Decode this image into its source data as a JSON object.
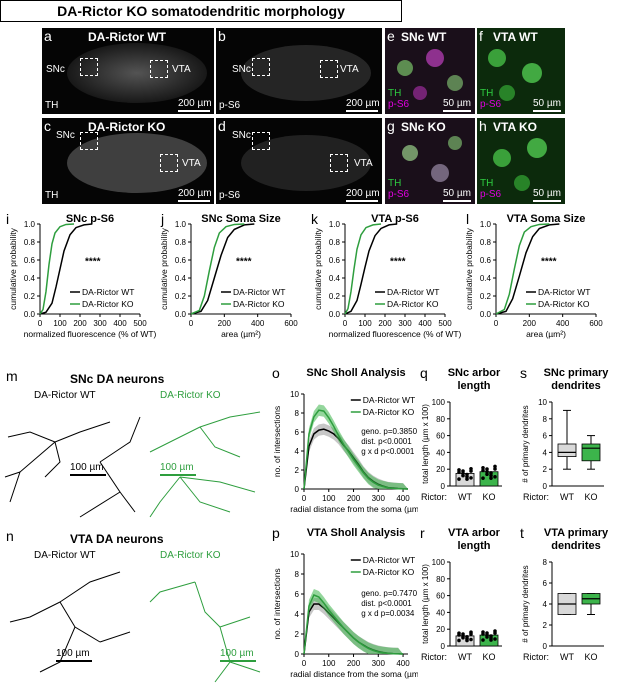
{
  "title": "DA-Rictor KO somatodendritic morphology",
  "colors": {
    "wt": "#000000",
    "ko": "#2e9e3e",
    "ko_fill": "#3cb44b",
    "magenta": "#e000e0"
  },
  "panels": {
    "a": {
      "letter": "a",
      "title": "DA-Rictor WT",
      "snc": "SNc",
      "vta": "VTA",
      "stain": "TH",
      "scale": "200 µm"
    },
    "b": {
      "letter": "b",
      "snc": "SNc",
      "vta": "VTA",
      "stain": "p-S6",
      "scale": "200 µm"
    },
    "c": {
      "letter": "c",
      "title": "DA-Rictor KO",
      "snc": "SNc",
      "vta": "VTA",
      "stain": "TH",
      "scale": "200 µm"
    },
    "d": {
      "letter": "d",
      "snc": "SNc",
      "vta": "VTA",
      "stain": "p-S6",
      "scale": "200 µm"
    },
    "e": {
      "letter": "e",
      "title": "SNc WT",
      "th": "TH",
      "ps6": "p-S6",
      "scale": "50 µm"
    },
    "f": {
      "letter": "f",
      "title": "VTA WT",
      "th": "TH",
      "ps6": "p-S6",
      "scale": "50 µm"
    },
    "g": {
      "letter": "g",
      "title": "SNc KO",
      "th": "TH",
      "ps6": "p-S6",
      "scale": "50 µm"
    },
    "h": {
      "letter": "h",
      "title": "VTA KO",
      "th": "TH",
      "ps6": "p-S6",
      "scale": "50 µm"
    },
    "m": {
      "letter": "m",
      "title": "SNc DA neurons",
      "wt": "DA-Rictor WT",
      "ko": "DA-Rictor KO",
      "scale_wt": "100 µm",
      "scale_ko": "100 µm"
    },
    "n": {
      "letter": "n",
      "title": "VTA DA neurons",
      "wt": "DA-Rictor WT",
      "ko": "DA-Rictor KO",
      "scale_wt": "100 µm",
      "scale_ko": "100 µm"
    }
  },
  "chart_data": [
    {
      "id": "i",
      "type": "line",
      "title": "SNc p-S6",
      "xlabel": "normalized fluorescence (% of WT)",
      "ylabel": "cumulative probability",
      "xlim": [
        0,
        500
      ],
      "ylim": [
        0,
        1.0
      ],
      "xticks": [
        0,
        100,
        200,
        300,
        400,
        500
      ],
      "yticks": [
        0,
        0.2,
        0.4,
        0.6,
        0.8,
        1.0
      ],
      "ytick_labels": [
        "0.0",
        "0.2",
        "0.4",
        "0.6",
        "0.8",
        "1.0"
      ],
      "sig": "****",
      "legend_position": "bottom-right",
      "series": [
        {
          "name": "DA-Rictor WT",
          "color": "#000000",
          "x": [
            0,
            30,
            60,
            80,
            100,
            120,
            150,
            180,
            220,
            260
          ],
          "y": [
            0,
            0.02,
            0.12,
            0.3,
            0.5,
            0.7,
            0.88,
            0.96,
            0.99,
            1.0
          ]
        },
        {
          "name": "DA-Rictor KO",
          "color": "#2e9e3e",
          "x": [
            0,
            15,
            30,
            45,
            60,
            75,
            100,
            130,
            170
          ],
          "y": [
            0,
            0.05,
            0.25,
            0.55,
            0.78,
            0.9,
            0.97,
            0.995,
            1.0
          ]
        }
      ]
    },
    {
      "id": "j",
      "type": "line",
      "title": "SNc Soma Size",
      "xlabel": "area (µm²)",
      "ylabel": "cumulative probability",
      "xlim": [
        0,
        600
      ],
      "ylim": [
        0,
        1.0
      ],
      "xticks": [
        0,
        200,
        400,
        600
      ],
      "yticks": [
        0,
        0.2,
        0.4,
        0.6,
        0.8,
        1.0
      ],
      "ytick_labels": [
        "0.0",
        "0.2",
        "0.4",
        "0.6",
        "0.8",
        "1.0"
      ],
      "sig": "****",
      "legend_position": "bottom-right",
      "series": [
        {
          "name": "DA-Rictor WT",
          "color": "#000000",
          "x": [
            0,
            60,
            100,
            140,
            180,
            220,
            260,
            320,
            380
          ],
          "y": [
            0,
            0.03,
            0.15,
            0.4,
            0.65,
            0.85,
            0.94,
            0.99,
            1.0
          ]
        },
        {
          "name": "DA-Rictor KO",
          "color": "#2e9e3e",
          "x": [
            0,
            50,
            80,
            110,
            140,
            170,
            210,
            260,
            320
          ],
          "y": [
            0,
            0.04,
            0.2,
            0.48,
            0.74,
            0.9,
            0.97,
            0.995,
            1.0
          ]
        }
      ]
    },
    {
      "id": "k",
      "type": "line",
      "title": "VTA p-S6",
      "xlabel": "normalized fluorescence (% of WT)",
      "ylabel": "cumulative probability",
      "xlim": [
        0,
        500
      ],
      "ylim": [
        0,
        1.0
      ],
      "xticks": [
        0,
        100,
        200,
        300,
        400,
        500
      ],
      "yticks": [
        0,
        0.2,
        0.4,
        0.6,
        0.8,
        1.0
      ],
      "ytick_labels": [
        "0.0",
        "0.2",
        "0.4",
        "0.6",
        "0.8",
        "1.0"
      ],
      "sig": "****",
      "legend_position": "bottom-right",
      "series": [
        {
          "name": "DA-Rictor WT",
          "color": "#000000",
          "x": [
            0,
            30,
            60,
            80,
            100,
            120,
            150,
            180,
            220,
            260
          ],
          "y": [
            0,
            0.03,
            0.15,
            0.33,
            0.52,
            0.7,
            0.87,
            0.95,
            0.99,
            1.0
          ]
        },
        {
          "name": "DA-Rictor KO",
          "color": "#2e9e3e",
          "x": [
            0,
            15,
            30,
            45,
            60,
            80,
            105,
            140,
            180
          ],
          "y": [
            0,
            0.06,
            0.25,
            0.5,
            0.72,
            0.88,
            0.96,
            0.99,
            1.0
          ]
        }
      ]
    },
    {
      "id": "l",
      "type": "line",
      "title": "VTA Soma Size",
      "xlabel": "area (µm²)",
      "ylabel": "cumulative probability",
      "xlim": [
        0,
        600
      ],
      "ylim": [
        0,
        1.0
      ],
      "xticks": [
        0,
        200,
        400,
        600
      ],
      "yticks": [
        0,
        0.2,
        0.4,
        0.6,
        0.8,
        1.0
      ],
      "ytick_labels": [
        "0.0",
        "0.2",
        "0.4",
        "0.6",
        "0.8",
        "1.0"
      ],
      "sig": "****",
      "legend_position": "bottom-right",
      "series": [
        {
          "name": "DA-Rictor WT",
          "color": "#000000",
          "x": [
            0,
            60,
            100,
            140,
            180,
            220,
            260,
            320,
            380
          ],
          "y": [
            0,
            0.03,
            0.17,
            0.42,
            0.68,
            0.86,
            0.95,
            0.99,
            1.0
          ]
        },
        {
          "name": "DA-Rictor KO",
          "color": "#2e9e3e",
          "x": [
            0,
            50,
            80,
            110,
            140,
            170,
            210,
            260,
            320
          ],
          "y": [
            0,
            0.05,
            0.22,
            0.5,
            0.76,
            0.91,
            0.97,
            0.995,
            1.0
          ]
        }
      ]
    },
    {
      "id": "o",
      "type": "line",
      "title": "SNc Sholl Analysis",
      "xlabel": "radial distance from the soma (µm)",
      "ylabel": "no. of intersections",
      "xlim": [
        0,
        420
      ],
      "ylim": [
        0,
        10
      ],
      "xticks": [
        0,
        100,
        200,
        300,
        400
      ],
      "yticks": [
        0,
        2,
        4,
        6,
        8,
        10
      ],
      "ytick_labels": [
        "0",
        "2",
        "4",
        "6",
        "8",
        "10"
      ],
      "legend_position": "top-right",
      "stats": [
        "geno. p=0.3850",
        "dist. p<0.0001",
        "g x d p<0.0001"
      ],
      "series": [
        {
          "name": "DA-Rictor WT",
          "color": "#000000",
          "x": [
            0,
            20,
            40,
            60,
            80,
            100,
            120,
            140,
            160,
            180,
            200,
            220,
            240,
            260,
            280,
            300,
            320,
            340,
            360,
            380,
            400,
            420
          ],
          "y": [
            0,
            4.5,
            5.8,
            6.2,
            6.3,
            6.1,
            5.8,
            5.3,
            4.6,
            4.0,
            3.3,
            2.6,
            1.8,
            1.2,
            0.8,
            0.5,
            0.3,
            0.15,
            0.1,
            0.05,
            0.02,
            0
          ],
          "err": 0.6
        },
        {
          "name": "DA-Rictor KO",
          "color": "#2e9e3e",
          "x": [
            0,
            20,
            40,
            60,
            80,
            100,
            120,
            140,
            160,
            180,
            200,
            220,
            240,
            260,
            280,
            300,
            320,
            340,
            360,
            380,
            400,
            420
          ],
          "y": [
            0,
            5.8,
            7.6,
            8.3,
            8.2,
            7.5,
            6.6,
            5.6,
            4.7,
            3.9,
            3.1,
            2.4,
            1.7,
            1.1,
            0.7,
            0.4,
            0.25,
            0.12,
            0.06,
            0.03,
            0.01,
            0
          ],
          "err": 0.6
        }
      ]
    },
    {
      "id": "p",
      "type": "line",
      "title": "VTA Sholl Analysis",
      "xlabel": "radial distance from the soma (µm)",
      "ylabel": "no. of intersections",
      "xlim": [
        0,
        420
      ],
      "ylim": [
        0,
        10
      ],
      "xticks": [
        0,
        100,
        200,
        300,
        400
      ],
      "yticks": [
        0,
        2,
        4,
        6,
        8,
        10
      ],
      "ytick_labels": [
        "0",
        "2",
        "4",
        "6",
        "8",
        "10"
      ],
      "legend_position": "top-right",
      "stats": [
        "geno. p=0.7470",
        "dist. p<0.0001",
        "g x d p=0.0034"
      ],
      "series": [
        {
          "name": "DA-Rictor WT",
          "color": "#000000",
          "x": [
            0,
            20,
            40,
            60,
            80,
            100,
            120,
            140,
            160,
            180,
            200,
            220,
            240,
            260,
            280,
            300,
            320,
            340,
            360,
            380,
            400
          ],
          "y": [
            0,
            4.2,
            5.0,
            5.0,
            4.6,
            4.1,
            3.6,
            3.1,
            2.6,
            2.1,
            1.6,
            1.2,
            0.9,
            0.6,
            0.4,
            0.25,
            0.15,
            0.08,
            0.04,
            0.02,
            0
          ],
          "err": 0.6
        },
        {
          "name": "DA-Rictor KO",
          "color": "#2e9e3e",
          "x": [
            0,
            20,
            40,
            60,
            80,
            100,
            120,
            140,
            160,
            180,
            200,
            220,
            240,
            260,
            280,
            300,
            320,
            340,
            360,
            380,
            400
          ],
          "y": [
            0,
            4.8,
            5.9,
            5.7,
            5.1,
            4.4,
            3.8,
            3.2,
            2.6,
            2.1,
            1.6,
            1.2,
            0.85,
            0.55,
            0.35,
            0.2,
            0.12,
            0.06,
            0.03,
            0.01,
            0
          ],
          "err": 0.6
        }
      ]
    },
    {
      "id": "q",
      "type": "bar",
      "title": "SNc arbor length",
      "ylabel": "total length (µm x 100)",
      "xlabel_prefix": "Rictor:",
      "categories": [
        "WT",
        "KO"
      ],
      "values": [
        15,
        17
      ],
      "ylim": [
        0,
        100
      ],
      "yticks": [
        0,
        20,
        40,
        60,
        80,
        100
      ],
      "ytick_labels": [
        "0",
        "20",
        "40",
        "60",
        "80",
        "100"
      ]
    },
    {
      "id": "r",
      "type": "bar",
      "title": "VTA arbor length",
      "ylabel": "total length (µm x 100)",
      "xlabel_prefix": "Rictor:",
      "categories": [
        "WT",
        "KO"
      ],
      "values": [
        12,
        13
      ],
      "ylim": [
        0,
        100
      ],
      "yticks": [
        0,
        20,
        40,
        60,
        80,
        100
      ],
      "ytick_labels": [
        "0",
        "20",
        "40",
        "60",
        "80",
        "100"
      ]
    },
    {
      "id": "s",
      "type": "box",
      "title": "SNc primary dendrites",
      "ylabel": "# of primary dendrites",
      "xlabel_prefix": "Rictor:",
      "categories": [
        "WT",
        "KO"
      ],
      "ylim": [
        0,
        10
      ],
      "yticks": [
        0,
        2,
        4,
        6,
        8,
        10
      ],
      "ytick_labels": [
        "0",
        "2",
        "4",
        "6",
        "8",
        "10"
      ],
      "boxes": [
        {
          "min": 2,
          "q1": 3.5,
          "median": 4,
          "q3": 5,
          "max": 9
        },
        {
          "min": 2,
          "q1": 3,
          "median": 4.5,
          "q3": 5,
          "max": 6
        }
      ]
    },
    {
      "id": "t",
      "type": "box",
      "title": "VTA primary dendrites",
      "ylabel": "# of primary dendrites",
      "xlabel_prefix": "Rictor:",
      "categories": [
        "WT",
        "KO"
      ],
      "ylim": [
        0,
        8
      ],
      "yticks": [
        0,
        2,
        4,
        6,
        8
      ],
      "ytick_labels": [
        "0",
        "2",
        "4",
        "6",
        "8"
      ],
      "boxes": [
        {
          "min": 3,
          "q1": 3,
          "median": 4,
          "q3": 5,
          "max": 5
        },
        {
          "min": 3,
          "q1": 4,
          "median": 4.5,
          "q3": 5,
          "max": 5
        }
      ]
    }
  ]
}
